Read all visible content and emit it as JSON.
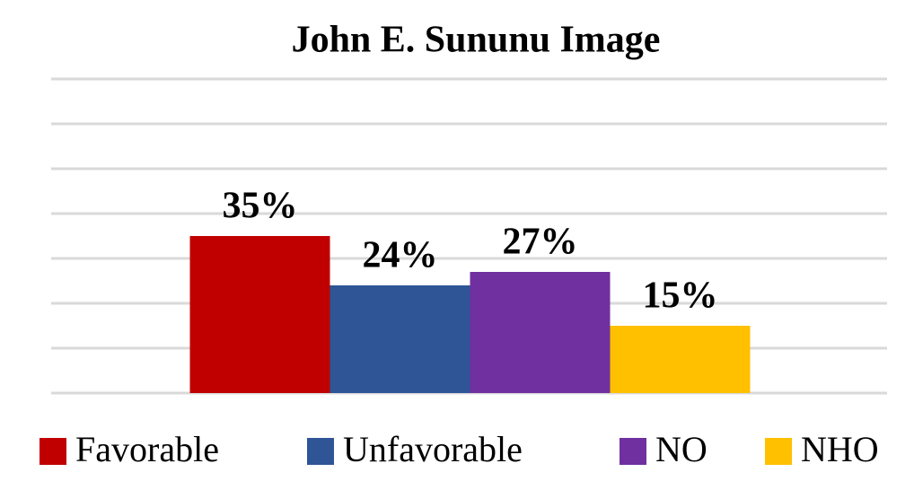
{
  "chart_data": {
    "type": "bar",
    "title": "John E. Sununu Image",
    "categories": [
      null
    ],
    "series": [
      {
        "name": "Favorable",
        "color": "#c00000",
        "values": [
          35
        ],
        "value_labels": [
          "35%"
        ]
      },
      {
        "name": "Unfavorable",
        "color": "#2f5597",
        "values": [
          24
        ],
        "value_labels": [
          "24%"
        ]
      },
      {
        "name": "NO",
        "color": "#7030a0",
        "values": [
          27
        ],
        "value_labels": [
          "27%"
        ]
      },
      {
        "name": "NHO",
        "color": "#ffc000",
        "values": [
          15
        ],
        "value_labels": [
          "15%"
        ]
      }
    ],
    "ylim": [
      0,
      70
    ],
    "yticks": [
      0,
      10,
      20,
      30,
      40,
      50,
      60,
      70
    ],
    "grid": true,
    "legend": "bottom"
  }
}
